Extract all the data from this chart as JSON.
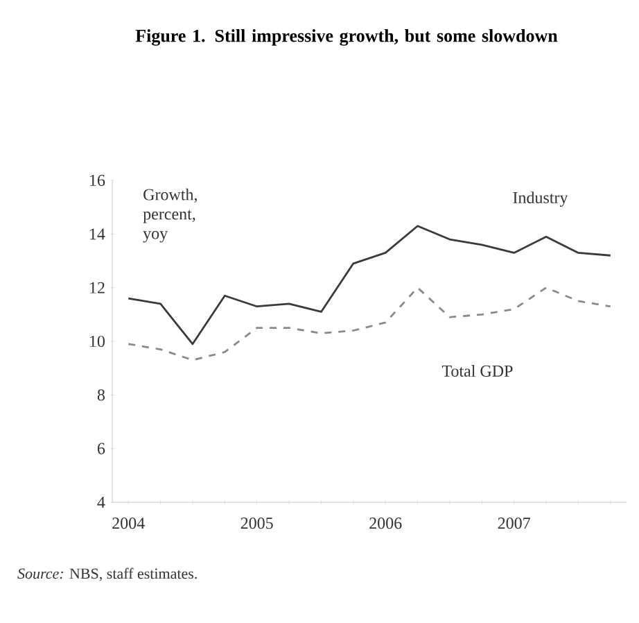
{
  "chart_data": {
    "type": "line",
    "title": "Figure 1. Still impressive growth, but some slowdown",
    "ylabel": "Growth, percent, yoy",
    "categories": [
      "2004",
      null,
      null,
      null,
      "2005",
      null,
      null,
      null,
      "2006",
      null,
      null,
      null,
      "2007",
      null,
      null,
      null
    ],
    "series": [
      {
        "name": "Industry",
        "color": "#3a3a3a",
        "line_style": "solid",
        "values": [
          11.6,
          11.4,
          9.9,
          11.7,
          11.3,
          11.4,
          11.1,
          12.9,
          13.3,
          14.3,
          13.8,
          13.6,
          13.3,
          13.9,
          13.3,
          13.2
        ]
      },
      {
        "name": "Total GDP",
        "color": "#8a8a8a",
        "line_style": "dashed",
        "values": [
          9.9,
          9.7,
          9.3,
          9.6,
          10.5,
          10.5,
          10.3,
          10.4,
          10.7,
          12.0,
          10.9,
          11.0,
          11.2,
          12.0,
          11.5,
          11.3
        ]
      }
    ],
    "ylim": [
      4,
      16
    ],
    "yticks": [
      4,
      6,
      8,
      10,
      12,
      14,
      16
    ],
    "grid": false,
    "legend": false,
    "marker": "none",
    "annotations": [
      "*Source:* NBS, staff estimates."
    ]
  }
}
